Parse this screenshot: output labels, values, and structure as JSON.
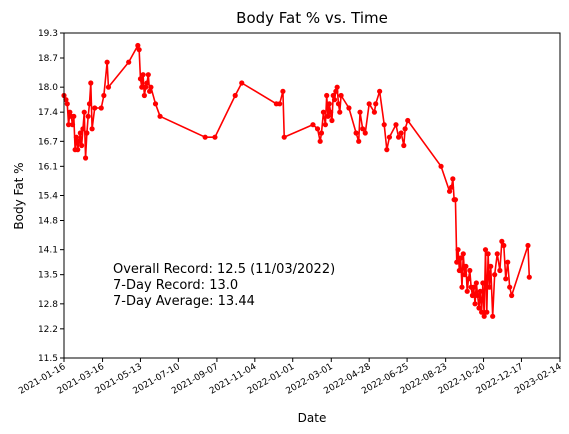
{
  "chart_data": {
    "type": "line",
    "title": "Body Fat % vs. Time",
    "xlabel": "Date",
    "ylabel": "Body Fat %",
    "xlim": [
      "2021-01-16",
      "2023-02-14"
    ],
    "ylim": [
      11.5,
      19.3
    ],
    "x_ticks": [
      "2021-01-16",
      "2021-03-16",
      "2021-05-13",
      "2021-07-10",
      "2021-09-07",
      "2021-11-04",
      "2022-01-01",
      "2022-03-01",
      "2022-04-28",
      "2022-06-25",
      "2022-08-23",
      "2022-10-20",
      "2022-12-17",
      "2023-02-14"
    ],
    "y_ticks": [
      "11.5",
      "12.2",
      "12.8",
      "13.5",
      "14.1",
      "14.8",
      "15.4",
      "16.1",
      "16.7",
      "17.4",
      "18.0",
      "18.7",
      "19.3"
    ],
    "grid": false,
    "legend": "none",
    "series": [
      {
        "color": "#ff0000",
        "marker": "circle",
        "points": [
          {
            "x": "2021-01-16",
            "y": 17.8
          },
          {
            "x": "2021-01-19",
            "y": 17.7
          },
          {
            "x": "2021-01-21",
            "y": 17.6
          },
          {
            "x": "2021-01-23",
            "y": 17.1
          },
          {
            "x": "2021-01-25",
            "y": 17.4
          },
          {
            "x": "2021-01-27",
            "y": 17.3
          },
          {
            "x": "2021-01-29",
            "y": 17.1
          },
          {
            "x": "2021-01-31",
            "y": 17.3
          },
          {
            "x": "2021-02-02",
            "y": 16.5
          },
          {
            "x": "2021-02-04",
            "y": 16.8
          },
          {
            "x": "2021-02-06",
            "y": 16.5
          },
          {
            "x": "2021-02-08",
            "y": 16.7
          },
          {
            "x": "2021-02-10",
            "y": 16.9
          },
          {
            "x": "2021-02-12",
            "y": 16.6
          },
          {
            "x": "2021-02-14",
            "y": 17.0
          },
          {
            "x": "2021-02-16",
            "y": 17.4
          },
          {
            "x": "2021-02-18",
            "y": 16.3
          },
          {
            "x": "2021-02-20",
            "y": 16.9
          },
          {
            "x": "2021-02-22",
            "y": 17.3
          },
          {
            "x": "2021-02-24",
            "y": 17.6
          },
          {
            "x": "2021-02-26",
            "y": 18.1
          },
          {
            "x": "2021-02-28",
            "y": 17.0
          },
          {
            "x": "2021-03-04",
            "y": 17.5
          },
          {
            "x": "2021-03-14",
            "y": 17.5
          },
          {
            "x": "2021-03-18",
            "y": 17.8
          },
          {
            "x": "2021-03-23",
            "y": 18.6
          },
          {
            "x": "2021-03-25",
            "y": 18.0
          },
          {
            "x": "2021-04-25",
            "y": 18.6
          },
          {
            "x": "2021-05-09",
            "y": 19.0
          },
          {
            "x": "2021-05-11",
            "y": 18.9
          },
          {
            "x": "2021-05-13",
            "y": 18.2
          },
          {
            "x": "2021-05-15",
            "y": 18.0
          },
          {
            "x": "2021-05-17",
            "y": 18.3
          },
          {
            "x": "2021-05-19",
            "y": 17.8
          },
          {
            "x": "2021-05-21",
            "y": 18.0
          },
          {
            "x": "2021-05-23",
            "y": 18.1
          },
          {
            "x": "2021-05-25",
            "y": 18.3
          },
          {
            "x": "2021-05-27",
            "y": 17.9
          },
          {
            "x": "2021-05-29",
            "y": 18.0
          },
          {
            "x": "2021-06-05",
            "y": 17.6
          },
          {
            "x": "2021-06-12",
            "y": 17.3
          },
          {
            "x": "2021-08-20",
            "y": 16.8
          },
          {
            "x": "2021-09-04",
            "y": 16.8
          },
          {
            "x": "2021-10-05",
            "y": 17.8
          },
          {
            "x": "2021-10-15",
            "y": 18.1
          },
          {
            "x": "2021-12-07",
            "y": 17.6
          },
          {
            "x": "2021-12-12",
            "y": 17.6
          },
          {
            "x": "2021-12-17",
            "y": 17.9
          },
          {
            "x": "2021-12-19",
            "y": 16.8
          },
          {
            "x": "2022-02-01",
            "y": 17.1
          },
          {
            "x": "2022-02-08",
            "y": 17.0
          },
          {
            "x": "2022-02-12",
            "y": 16.7
          },
          {
            "x": "2022-02-14",
            "y": 16.9
          },
          {
            "x": "2022-02-17",
            "y": 17.4
          },
          {
            "x": "2022-02-20",
            "y": 17.1
          },
          {
            "x": "2022-02-22",
            "y": 17.8
          },
          {
            "x": "2022-02-24",
            "y": 17.3
          },
          {
            "x": "2022-02-26",
            "y": 17.6
          },
          {
            "x": "2022-02-28",
            "y": 17.4
          },
          {
            "x": "2022-03-02",
            "y": 17.2
          },
          {
            "x": "2022-03-04",
            "y": 17.8
          },
          {
            "x": "2022-03-06",
            "y": 17.7
          },
          {
            "x": "2022-03-08",
            "y": 17.9
          },
          {
            "x": "2022-03-10",
            "y": 18.0
          },
          {
            "x": "2022-03-12",
            "y": 17.6
          },
          {
            "x": "2022-03-14",
            "y": 17.4
          },
          {
            "x": "2022-03-16",
            "y": 17.8
          },
          {
            "x": "2022-03-28",
            "y": 17.5
          },
          {
            "x": "2022-04-08",
            "y": 16.9
          },
          {
            "x": "2022-04-12",
            "y": 16.7
          },
          {
            "x": "2022-04-14",
            "y": 17.4
          },
          {
            "x": "2022-04-18",
            "y": 17.0
          },
          {
            "x": "2022-04-22",
            "y": 16.9
          },
          {
            "x": "2022-04-28",
            "y": 17.6
          },
          {
            "x": "2022-05-06",
            "y": 17.4
          },
          {
            "x": "2022-05-08",
            "y": 17.6
          },
          {
            "x": "2022-05-14",
            "y": 17.9
          },
          {
            "x": "2022-05-21",
            "y": 17.1
          },
          {
            "x": "2022-05-25",
            "y": 16.5
          },
          {
            "x": "2022-05-29",
            "y": 16.8
          },
          {
            "x": "2022-06-08",
            "y": 17.1
          },
          {
            "x": "2022-06-12",
            "y": 16.8
          },
          {
            "x": "2022-06-16",
            "y": 16.9
          },
          {
            "x": "2022-06-20",
            "y": 16.6
          },
          {
            "x": "2022-06-22",
            "y": 17.0
          },
          {
            "x": "2022-06-26",
            "y": 17.2
          },
          {
            "x": "2022-08-16",
            "y": 16.1
          },
          {
            "x": "2022-08-29",
            "y": 15.5
          },
          {
            "x": "2022-09-01",
            "y": 15.6
          },
          {
            "x": "2022-09-03",
            "y": 15.8
          },
          {
            "x": "2022-09-05",
            "y": 15.3
          },
          {
            "x": "2022-09-07",
            "y": 15.3
          },
          {
            "x": "2022-09-09",
            "y": 13.8
          },
          {
            "x": "2022-09-11",
            "y": 14.1
          },
          {
            "x": "2022-09-13",
            "y": 13.6
          },
          {
            "x": "2022-09-15",
            "y": 13.9
          },
          {
            "x": "2022-09-17",
            "y": 13.2
          },
          {
            "x": "2022-09-19",
            "y": 14.0
          },
          {
            "x": "2022-09-21",
            "y": 13.5
          },
          {
            "x": "2022-09-23",
            "y": 13.7
          },
          {
            "x": "2022-09-25",
            "y": 13.1
          },
          {
            "x": "2022-09-27",
            "y": 13.4
          },
          {
            "x": "2022-09-29",
            "y": 13.6
          },
          {
            "x": "2022-10-01",
            "y": 13.2
          },
          {
            "x": "2022-10-03",
            "y": 13.0
          },
          {
            "x": "2022-10-05",
            "y": 13.2
          },
          {
            "x": "2022-10-07",
            "y": 12.8
          },
          {
            "x": "2022-10-09",
            "y": 13.3
          },
          {
            "x": "2022-10-11",
            "y": 13.0
          },
          {
            "x": "2022-10-13",
            "y": 12.7
          },
          {
            "x": "2022-10-15",
            "y": 13.1
          },
          {
            "x": "2022-10-17",
            "y": 12.6
          },
          {
            "x": "2022-10-19",
            "y": 13.3
          },
          {
            "x": "2022-10-21",
            "y": 12.5
          },
          {
            "x": "2022-10-23",
            "y": 14.1
          },
          {
            "x": "2022-10-25",
            "y": 12.6
          },
          {
            "x": "2022-10-27",
            "y": 14.0
          },
          {
            "x": "2022-10-29",
            "y": 13.2
          },
          {
            "x": "2022-10-31",
            "y": 13.7
          },
          {
            "x": "2022-11-03",
            "y": 12.5
          },
          {
            "x": "2022-11-06",
            "y": 13.5
          },
          {
            "x": "2022-11-10",
            "y": 14.0
          },
          {
            "x": "2022-11-14",
            "y": 13.6
          },
          {
            "x": "2022-11-17",
            "y": 14.3
          },
          {
            "x": "2022-11-20",
            "y": 14.2
          },
          {
            "x": "2022-11-23",
            "y": 13.4
          },
          {
            "x": "2022-11-26",
            "y": 13.8
          },
          {
            "x": "2022-11-29",
            "y": 13.2
          },
          {
            "x": "2022-12-02",
            "y": 13.0
          },
          {
            "x": "2022-12-27",
            "y": 14.2
          },
          {
            "x": "2022-12-29",
            "y": 13.44
          }
        ]
      }
    ],
    "annotations": [
      "Overall Record: 12.5 (11/03/2022)",
      "7-Day Record: 13.0",
      "7-Day Average: 13.44"
    ]
  }
}
